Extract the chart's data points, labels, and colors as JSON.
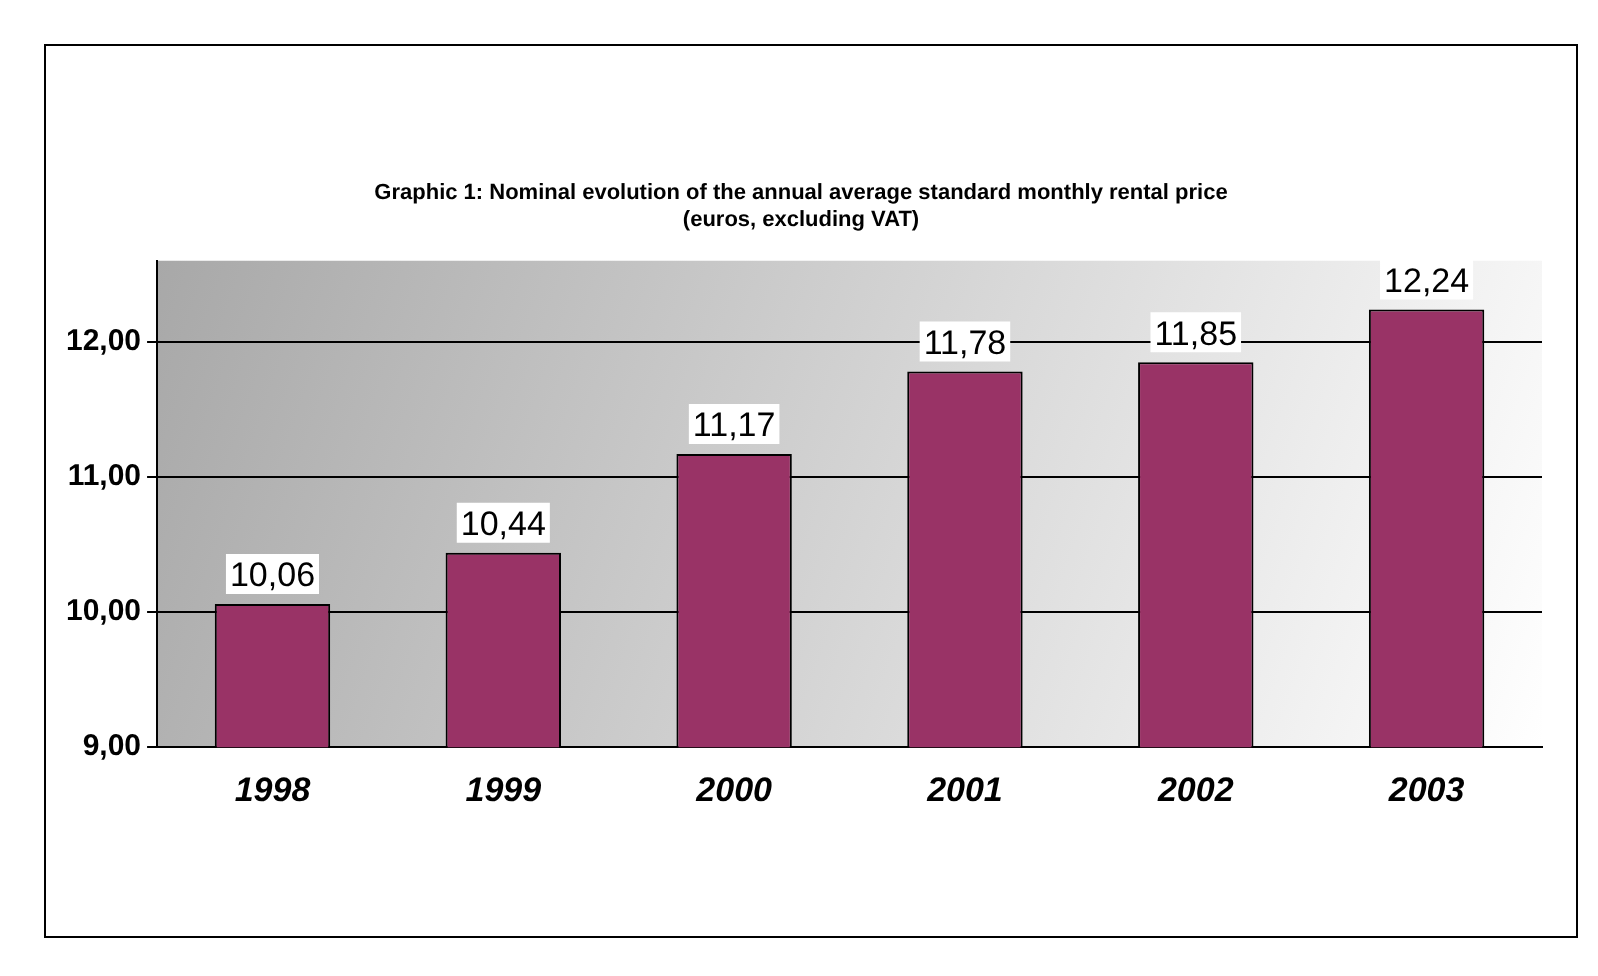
{
  "chart_data": {
    "type": "bar",
    "title": [
      "Graphic 1: Nominal evolution of the annual average standard monthly rental price",
      "(euros, excluding VAT)"
    ],
    "categories": [
      "1998",
      "1999",
      "2000",
      "2001",
      "2002",
      "2003"
    ],
    "values": [
      10.06,
      10.44,
      11.17,
      11.78,
      11.85,
      12.24
    ],
    "value_labels": [
      "10,06",
      "10,44",
      "11,17",
      "11,78",
      "11,85",
      "12,24"
    ],
    "color": "#993366",
    "ylim": [
      9,
      12.6
    ],
    "yticks": [
      {
        "value": 9,
        "label": "9,00"
      },
      {
        "value": 10,
        "label": "10,00"
      },
      {
        "value": 11,
        "label": "11,00"
      },
      {
        "value": 12,
        "label": "12,00"
      }
    ],
    "grid": "y",
    "legend": false
  }
}
